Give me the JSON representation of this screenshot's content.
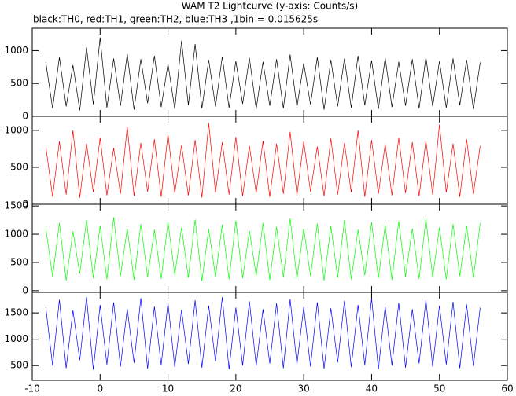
{
  "chart_data": [
    {
      "type": "line",
      "title": "WAM T2 Lightcurve (y-axis: Counts/s)",
      "subtitle": "black:TH0, red:TH1, green:TH2, blue:TH3 ,1bin = 0.015625s",
      "x": [
        -8,
        -7,
        -6,
        -5,
        -4,
        -3,
        -2,
        -1,
        0,
        1,
        2,
        3,
        4,
        5,
        6,
        7,
        8,
        9,
        10,
        11,
        12,
        13,
        14,
        15,
        16,
        17,
        18,
        19,
        20,
        21,
        22,
        23,
        24,
        25,
        26,
        27,
        28,
        29,
        30,
        31,
        32,
        33,
        34,
        35,
        36,
        37,
        38,
        39,
        40,
        41,
        42,
        43,
        44,
        45,
        46,
        47,
        48,
        49,
        50,
        51,
        52,
        53,
        54,
        55,
        56
      ],
      "series": [
        {
          "name": "TH0",
          "color": "#000000",
          "values": [
            820,
            120,
            900,
            150,
            780,
            90,
            1050,
            180,
            1200,
            130,
            880,
            160,
            950,
            100,
            870,
            200,
            920,
            140,
            800,
            110,
            1150,
            170,
            1100,
            120,
            860,
            150,
            910,
            130,
            840,
            190,
            890,
            110,
            830,
            160,
            870,
            120,
            940,
            140,
            810,
            180,
            900,
            100,
            860,
            150,
            880,
            130,
            920,
            170,
            850,
            110,
            890,
            140,
            830,
            160,
            870,
            120,
            900,
            150,
            840,
            130,
            880,
            170,
            860,
            110,
            820
          ]
        }
      ],
      "ylim": [
        0,
        1340
      ],
      "yticks": [
        0,
        500,
        1000
      ]
    },
    {
      "type": "line",
      "x": [
        -8,
        -7,
        -6,
        -5,
        -4,
        -3,
        -2,
        -1,
        0,
        1,
        2,
        3,
        4,
        5,
        6,
        7,
        8,
        9,
        10,
        11,
        12,
        13,
        14,
        15,
        16,
        17,
        18,
        19,
        20,
        21,
        22,
        23,
        24,
        25,
        26,
        27,
        28,
        29,
        30,
        31,
        32,
        33,
        34,
        35,
        36,
        37,
        38,
        39,
        40,
        41,
        42,
        43,
        44,
        45,
        46,
        47,
        48,
        49,
        50,
        51,
        52,
        53,
        54,
        55,
        56
      ],
      "series": [
        {
          "name": "TH1",
          "color": "#ff0000",
          "values": [
            780,
            100,
            850,
            130,
            1000,
            90,
            820,
            160,
            900,
            120,
            760,
            140,
            1050,
            110,
            830,
            170,
            880,
            100,
            950,
            150,
            800,
            120,
            870,
            90,
            1100,
            160,
            840,
            130,
            910,
            110,
            790,
            150,
            860,
            100,
            820,
            140,
            980,
            120,
            850,
            170,
            780,
            110,
            890,
            130,
            830,
            160,
            1000,
            100,
            870,
            140,
            810,
            120,
            900,
            150,
            840,
            110,
            860,
            130,
            1080,
            160,
            820,
            100,
            880,
            140,
            790
          ]
        }
      ],
      "ylim": [
        0,
        1190
      ],
      "yticks": [
        0,
        500,
        1000
      ]
    },
    {
      "type": "line",
      "x": [
        -8,
        -7,
        -6,
        -5,
        -4,
        -3,
        -2,
        -1,
        0,
        1,
        2,
        3,
        4,
        5,
        6,
        7,
        8,
        9,
        10,
        11,
        12,
        13,
        14,
        15,
        16,
        17,
        18,
        19,
        20,
        21,
        22,
        23,
        24,
        25,
        26,
        27,
        28,
        29,
        30,
        31,
        32,
        33,
        34,
        35,
        36,
        37,
        38,
        39,
        40,
        41,
        42,
        43,
        44,
        45,
        46,
        47,
        48,
        49,
        50,
        51,
        52,
        53,
        54,
        55,
        56
      ],
      "series": [
        {
          "name": "TH2",
          "color": "#00ff00",
          "values": [
            1100,
            250,
            1200,
            180,
            1050,
            300,
            1250,
            220,
            1150,
            200,
            1300,
            260,
            1100,
            190,
            1180,
            240,
            1080,
            210,
            1220,
            280,
            1120,
            230,
            1260,
            170,
            1090,
            250,
            1170,
            200,
            1240,
            220,
            1060,
            270,
            1200,
            190,
            1130,
            240,
            1280,
            210,
            1100,
            260,
            1190,
            180,
            1140,
            230,
            1250,
            200,
            1080,
            270,
            1210,
            220,
            1160,
            190,
            1230,
            250,
            1100,
            210,
            1270,
            240,
            1120,
            200,
            1180,
            260,
            1150,
            230,
            1200
          ]
        }
      ],
      "ylim": [
        -30,
        1530
      ],
      "yticks": [
        0,
        500,
        1000,
        1500
      ]
    },
    {
      "type": "line",
      "x": [
        -8,
        -7,
        -6,
        -5,
        -4,
        -3,
        -2,
        -1,
        0,
        1,
        2,
        3,
        4,
        5,
        6,
        7,
        8,
        9,
        10,
        11,
        12,
        13,
        14,
        15,
        16,
        17,
        18,
        19,
        20,
        21,
        22,
        23,
        24,
        25,
        26,
        27,
        28,
        29,
        30,
        31,
        32,
        33,
        34,
        35,
        36,
        37,
        38,
        39,
        40,
        41,
        42,
        43,
        44,
        45,
        46,
        47,
        48,
        49,
        50,
        51,
        52,
        53,
        54,
        55,
        56
      ],
      "series": [
        {
          "name": "TH3",
          "color": "#0000ff",
          "values": [
            1600,
            500,
            1750,
            450,
            1550,
            600,
            1800,
            420,
            1650,
            520,
            1700,
            480,
            1580,
            550,
            1780,
            440,
            1620,
            510,
            1690,
            470,
            1560,
            530,
            1740,
            460,
            1640,
            580,
            1800,
            430,
            1600,
            500,
            1720,
            490,
            1570,
            540,
            1680,
            450,
            1760,
            520,
            1610,
            480,
            1700,
            440,
            1590,
            560,
            1730,
            470,
            1650,
            510,
            1780,
            430,
            1620,
            500,
            1690,
            460,
            1570,
            540,
            1750,
            480,
            1640,
            520,
            1710,
            450,
            1660,
            490,
            1600
          ]
        }
      ],
      "ylim": [
        220,
        1890
      ],
      "yticks": [
        500,
        1000,
        1500
      ],
      "xlim": [
        -10,
        60
      ],
      "xticks": [
        -10,
        0,
        10,
        20,
        30,
        40,
        50,
        60
      ]
    }
  ]
}
